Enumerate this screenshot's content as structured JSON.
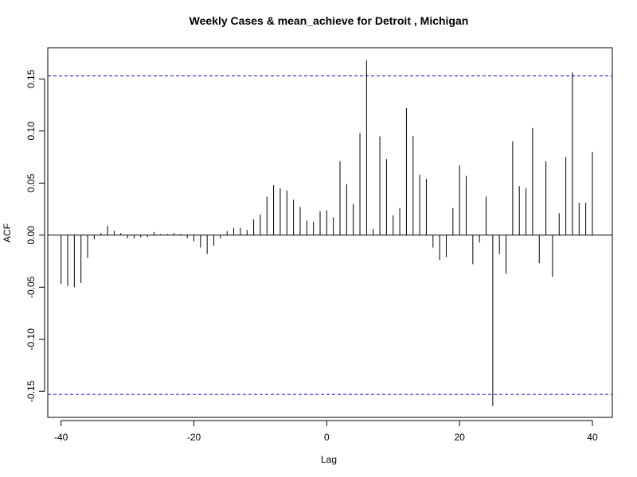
{
  "chart_data": {
    "type": "bar",
    "title": "Weekly Cases & mean_achieve for Detroit , Michigan",
    "xlabel": "Lag",
    "ylabel": "ACF",
    "xlim": [
      -42,
      43
    ],
    "ylim": [
      -0.175,
      0.18
    ],
    "x_ticks": [
      -40,
      -20,
      0,
      20,
      40
    ],
    "y_ticks": [
      -0.15,
      -0.1,
      -0.05,
      0.0,
      0.05,
      0.1,
      0.15
    ],
    "x_tick_labels": [
      "-40",
      "-20",
      "0",
      "20",
      "40"
    ],
    "y_tick_labels": [
      "-0.15",
      "-0.10",
      "-0.05",
      "0.00",
      "0.05",
      "0.10",
      "0.15"
    ],
    "confidence_bounds": [
      0.153,
      -0.153
    ],
    "colors": {
      "spike": "#000000",
      "bound": "#0000cc",
      "zero_line": "#000000"
    },
    "lags": [
      -40,
      -39,
      -38,
      -37,
      -36,
      -35,
      -34,
      -33,
      -32,
      -31,
      -30,
      -29,
      -28,
      -27,
      -26,
      -25,
      -24,
      -23,
      -22,
      -21,
      -20,
      -19,
      -18,
      -17,
      -16,
      -15,
      -14,
      -13,
      -12,
      -11,
      -10,
      -9,
      -8,
      -7,
      -6,
      -5,
      -4,
      -3,
      -2,
      -1,
      0,
      1,
      2,
      3,
      4,
      5,
      6,
      7,
      8,
      9,
      10,
      11,
      12,
      13,
      14,
      15,
      16,
      17,
      18,
      19,
      20,
      21,
      22,
      23,
      24,
      25,
      26,
      27,
      28,
      29,
      30,
      31,
      32,
      33,
      34,
      35,
      36,
      37,
      38,
      39,
      40
    ],
    "values": [
      -0.047,
      -0.049,
      -0.05,
      -0.046,
      -0.022,
      -0.004,
      0.002,
      0.009,
      0.004,
      0.002,
      -0.003,
      -0.003,
      -0.002,
      -0.002,
      0.003,
      0.001,
      0.001,
      0.002,
      0.001,
      -0.003,
      -0.006,
      -0.012,
      -0.018,
      -0.01,
      -0.003,
      0.004,
      0.007,
      0.007,
      0.005,
      0.015,
      0.02,
      0.037,
      0.048,
      0.045,
      0.043,
      0.034,
      0.027,
      0.014,
      0.013,
      0.023,
      0.024,
      0.017,
      0.071,
      0.049,
      0.03,
      0.098,
      0.168,
      0.006,
      0.095,
      0.073,
      0.019,
      0.026,
      0.122,
      0.095,
      0.058,
      0.054,
      -0.012,
      -0.024,
      -0.021,
      0.026,
      0.067,
      0.057,
      -0.028,
      -0.007,
      0.037,
      -0.164,
      -0.018,
      -0.037,
      0.09,
      0.047,
      0.045,
      0.103,
      -0.027,
      0.071,
      -0.04,
      0.021,
      0.075,
      0.156,
      0.031,
      0.031,
      0.08
    ]
  }
}
